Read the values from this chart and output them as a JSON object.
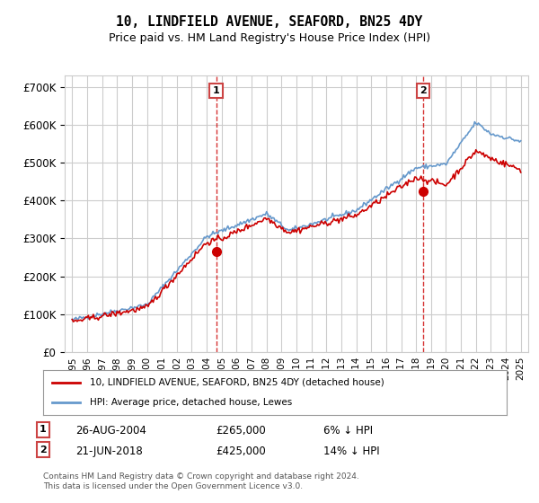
{
  "title": "10, LINDFIELD AVENUE, SEAFORD, BN25 4DY",
  "subtitle": "Price paid vs. HM Land Registry's House Price Index (HPI)",
  "ylabel_ticks": [
    "£0",
    "£100K",
    "£200K",
    "£300K",
    "£400K",
    "£500K",
    "£600K",
    "£700K"
  ],
  "ylim": [
    0,
    730000
  ],
  "yticks": [
    0,
    100000,
    200000,
    300000,
    400000,
    500000,
    600000,
    700000
  ],
  "sale1_date": "26-AUG-2004",
  "sale1_price": 265000,
  "sale1_label": "1",
  "sale1_hpi_diff": "6% ↓ HPI",
  "sale2_date": "21-JUN-2018",
  "sale2_price": 425000,
  "sale2_label": "2",
  "sale2_hpi_diff": "14% ↓ HPI",
  "legend_house": "10, LINDFIELD AVENUE, SEAFORD, BN25 4DY (detached house)",
  "legend_hpi": "HPI: Average price, detached house, Lewes",
  "footer": "Contains HM Land Registry data © Crown copyright and database right 2024.\nThis data is licensed under the Open Government Licence v3.0.",
  "house_color": "#cc0000",
  "hpi_color": "#6699cc",
  "marker_color_1": "#cc0000",
  "marker_color_2": "#cc0000",
  "vline_color": "#cc0000",
  "background_color": "#ffffff",
  "grid_color": "#cccccc"
}
